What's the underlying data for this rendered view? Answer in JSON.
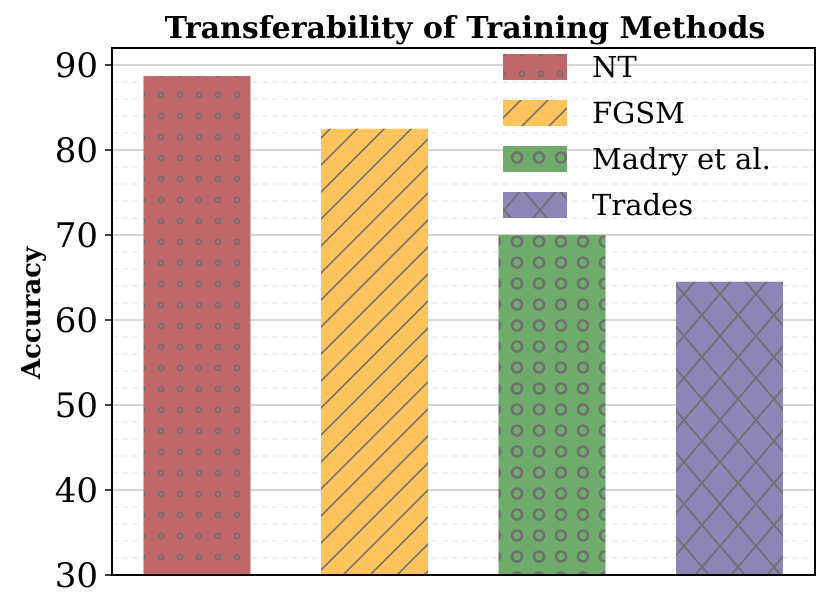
{
  "chart_data": {
    "type": "bar",
    "title": "Transferability of Training Methods",
    "xlabel": "",
    "ylabel": "Accuracy",
    "ylim": [
      30,
      92
    ],
    "yticks": [
      "30",
      "40",
      "50",
      "60",
      "70",
      "80",
      "90"
    ],
    "grid": "horizontal major and minor",
    "legend_placement": "top-right",
    "categories": [
      "NT",
      "FGSM",
      "Madry et al.",
      "Trades"
    ],
    "values": [
      88.7,
      82.5,
      70.0,
      64.5
    ],
    "series_styles": [
      {
        "name": "NT",
        "color": "#c0676a",
        "pattern": "small-dots"
      },
      {
        "name": "FGSM",
        "color": "#fdc35d",
        "pattern": "diagonal-hatch"
      },
      {
        "name": "Madry et al.",
        "color": "#6fac6c",
        "pattern": "rings"
      },
      {
        "name": "Trades",
        "color": "#8c85b6",
        "pattern": "crosshatch"
      }
    ]
  }
}
